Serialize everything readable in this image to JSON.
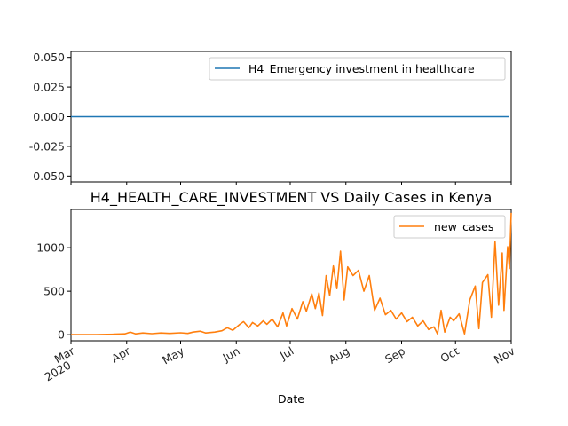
{
  "chart_data": [
    {
      "type": "line",
      "title": "",
      "xlabel": "",
      "ylabel": "",
      "ylim": [
        -0.055,
        0.055
      ],
      "yticks": [
        "0.050",
        "0.025",
        "0.000",
        "-0.025",
        "-0.050"
      ],
      "ytick_values": [
        0.05,
        0.025,
        0.0,
        -0.025,
        -0.05
      ],
      "legend_placement": "upper-right",
      "grid": false,
      "series": [
        {
          "name": "H4_Emergency investment in healthcare",
          "color": "#1f77b4",
          "x": [
            "2020-03-01",
            "2020-10-31"
          ],
          "y": [
            0,
            0
          ]
        }
      ]
    },
    {
      "type": "line",
      "title": "H4_HEALTH_CARE_INVESTMENT VS Daily Cases in Kenya",
      "xlabel": "Date",
      "ylabel": "",
      "ylim": [
        -70,
        1440
      ],
      "yticks": [
        "1000",
        "500",
        "0"
      ],
      "ytick_values": [
        1000,
        500,
        0
      ],
      "legend_placement": "upper-right",
      "grid": false,
      "x_ticks": [
        {
          "label": "Mar",
          "sub": "2020",
          "date": "2020-03-01"
        },
        {
          "label": "Apr",
          "sub": "",
          "date": "2020-04-01"
        },
        {
          "label": "May",
          "sub": "",
          "date": "2020-05-01"
        },
        {
          "label": "Jun",
          "sub": "",
          "date": "2020-06-01"
        },
        {
          "label": "Jul",
          "sub": "",
          "date": "2020-07-01"
        },
        {
          "label": "Aug",
          "sub": "",
          "date": "2020-08-01"
        },
        {
          "label": "Sep",
          "sub": "",
          "date": "2020-09-01"
        },
        {
          "label": "Oct",
          "sub": "",
          "date": "2020-10-01"
        },
        {
          "label": "Nov",
          "sub": "",
          "date": "2020-11-01"
        }
      ],
      "x_range": [
        "2020-03-01",
        "2020-11-01"
      ],
      "series": [
        {
          "name": "new_cases",
          "color": "#ff7f0e",
          "points": [
            [
              "2020-03-01",
              0
            ],
            [
              "2020-03-15",
              0
            ],
            [
              "2020-03-25",
              5
            ],
            [
              "2020-03-31",
              10
            ],
            [
              "2020-04-03",
              30
            ],
            [
              "2020-04-06",
              10
            ],
            [
              "2020-04-10",
              20
            ],
            [
              "2020-04-15",
              12
            ],
            [
              "2020-04-20",
              20
            ],
            [
              "2020-04-25",
              15
            ],
            [
              "2020-05-01",
              22
            ],
            [
              "2020-05-05",
              15
            ],
            [
              "2020-05-08",
              30
            ],
            [
              "2020-05-12",
              40
            ],
            [
              "2020-05-15",
              20
            ],
            [
              "2020-05-20",
              30
            ],
            [
              "2020-05-24",
              45
            ],
            [
              "2020-05-27",
              80
            ],
            [
              "2020-05-30",
              50
            ],
            [
              "2020-06-03",
              120
            ],
            [
              "2020-06-05",
              150
            ],
            [
              "2020-06-08",
              80
            ],
            [
              "2020-06-10",
              140
            ],
            [
              "2020-06-13",
              100
            ],
            [
              "2020-06-16",
              160
            ],
            [
              "2020-06-18",
              120
            ],
            [
              "2020-06-21",
              180
            ],
            [
              "2020-06-24",
              90
            ],
            [
              "2020-06-27",
              250
            ],
            [
              "2020-06-29",
              100
            ],
            [
              "2020-07-02",
              300
            ],
            [
              "2020-07-05",
              180
            ],
            [
              "2020-07-08",
              380
            ],
            [
              "2020-07-10",
              270
            ],
            [
              "2020-07-13",
              470
            ],
            [
              "2020-07-15",
              300
            ],
            [
              "2020-07-17",
              480
            ],
            [
              "2020-07-19",
              220
            ],
            [
              "2020-07-21",
              680
            ],
            [
              "2020-07-23",
              450
            ],
            [
              "2020-07-25",
              790
            ],
            [
              "2020-07-27",
              530
            ],
            [
              "2020-07-29",
              960
            ],
            [
              "2020-07-31",
              400
            ],
            [
              "2020-08-02",
              780
            ],
            [
              "2020-08-05",
              680
            ],
            [
              "2020-08-08",
              740
            ],
            [
              "2020-08-11",
              500
            ],
            [
              "2020-08-14",
              680
            ],
            [
              "2020-08-17",
              280
            ],
            [
              "2020-08-20",
              420
            ],
            [
              "2020-08-23",
              230
            ],
            [
              "2020-08-26",
              280
            ],
            [
              "2020-08-29",
              180
            ],
            [
              "2020-09-01",
              250
            ],
            [
              "2020-09-04",
              150
            ],
            [
              "2020-09-07",
              200
            ],
            [
              "2020-09-10",
              100
            ],
            [
              "2020-09-13",
              160
            ],
            [
              "2020-09-16",
              60
            ],
            [
              "2020-09-19",
              90
            ],
            [
              "2020-09-21",
              10
            ],
            [
              "2020-09-23",
              280
            ],
            [
              "2020-09-25",
              30
            ],
            [
              "2020-09-28",
              200
            ],
            [
              "2020-09-30",
              160
            ],
            [
              "2020-10-03",
              240
            ],
            [
              "2020-10-06",
              10
            ],
            [
              "2020-10-09",
              400
            ],
            [
              "2020-10-12",
              560
            ],
            [
              "2020-10-14",
              70
            ],
            [
              "2020-10-16",
              600
            ],
            [
              "2020-10-19",
              690
            ],
            [
              "2020-10-21",
              200
            ],
            [
              "2020-10-23",
              1070
            ],
            [
              "2020-10-25",
              340
            ],
            [
              "2020-10-27",
              940
            ],
            [
              "2020-10-28",
              280
            ],
            [
              "2020-10-30",
              1010
            ],
            [
              "2020-10-31",
              760
            ],
            [
              "2020-11-01",
              1400
            ]
          ]
        }
      ]
    }
  ]
}
